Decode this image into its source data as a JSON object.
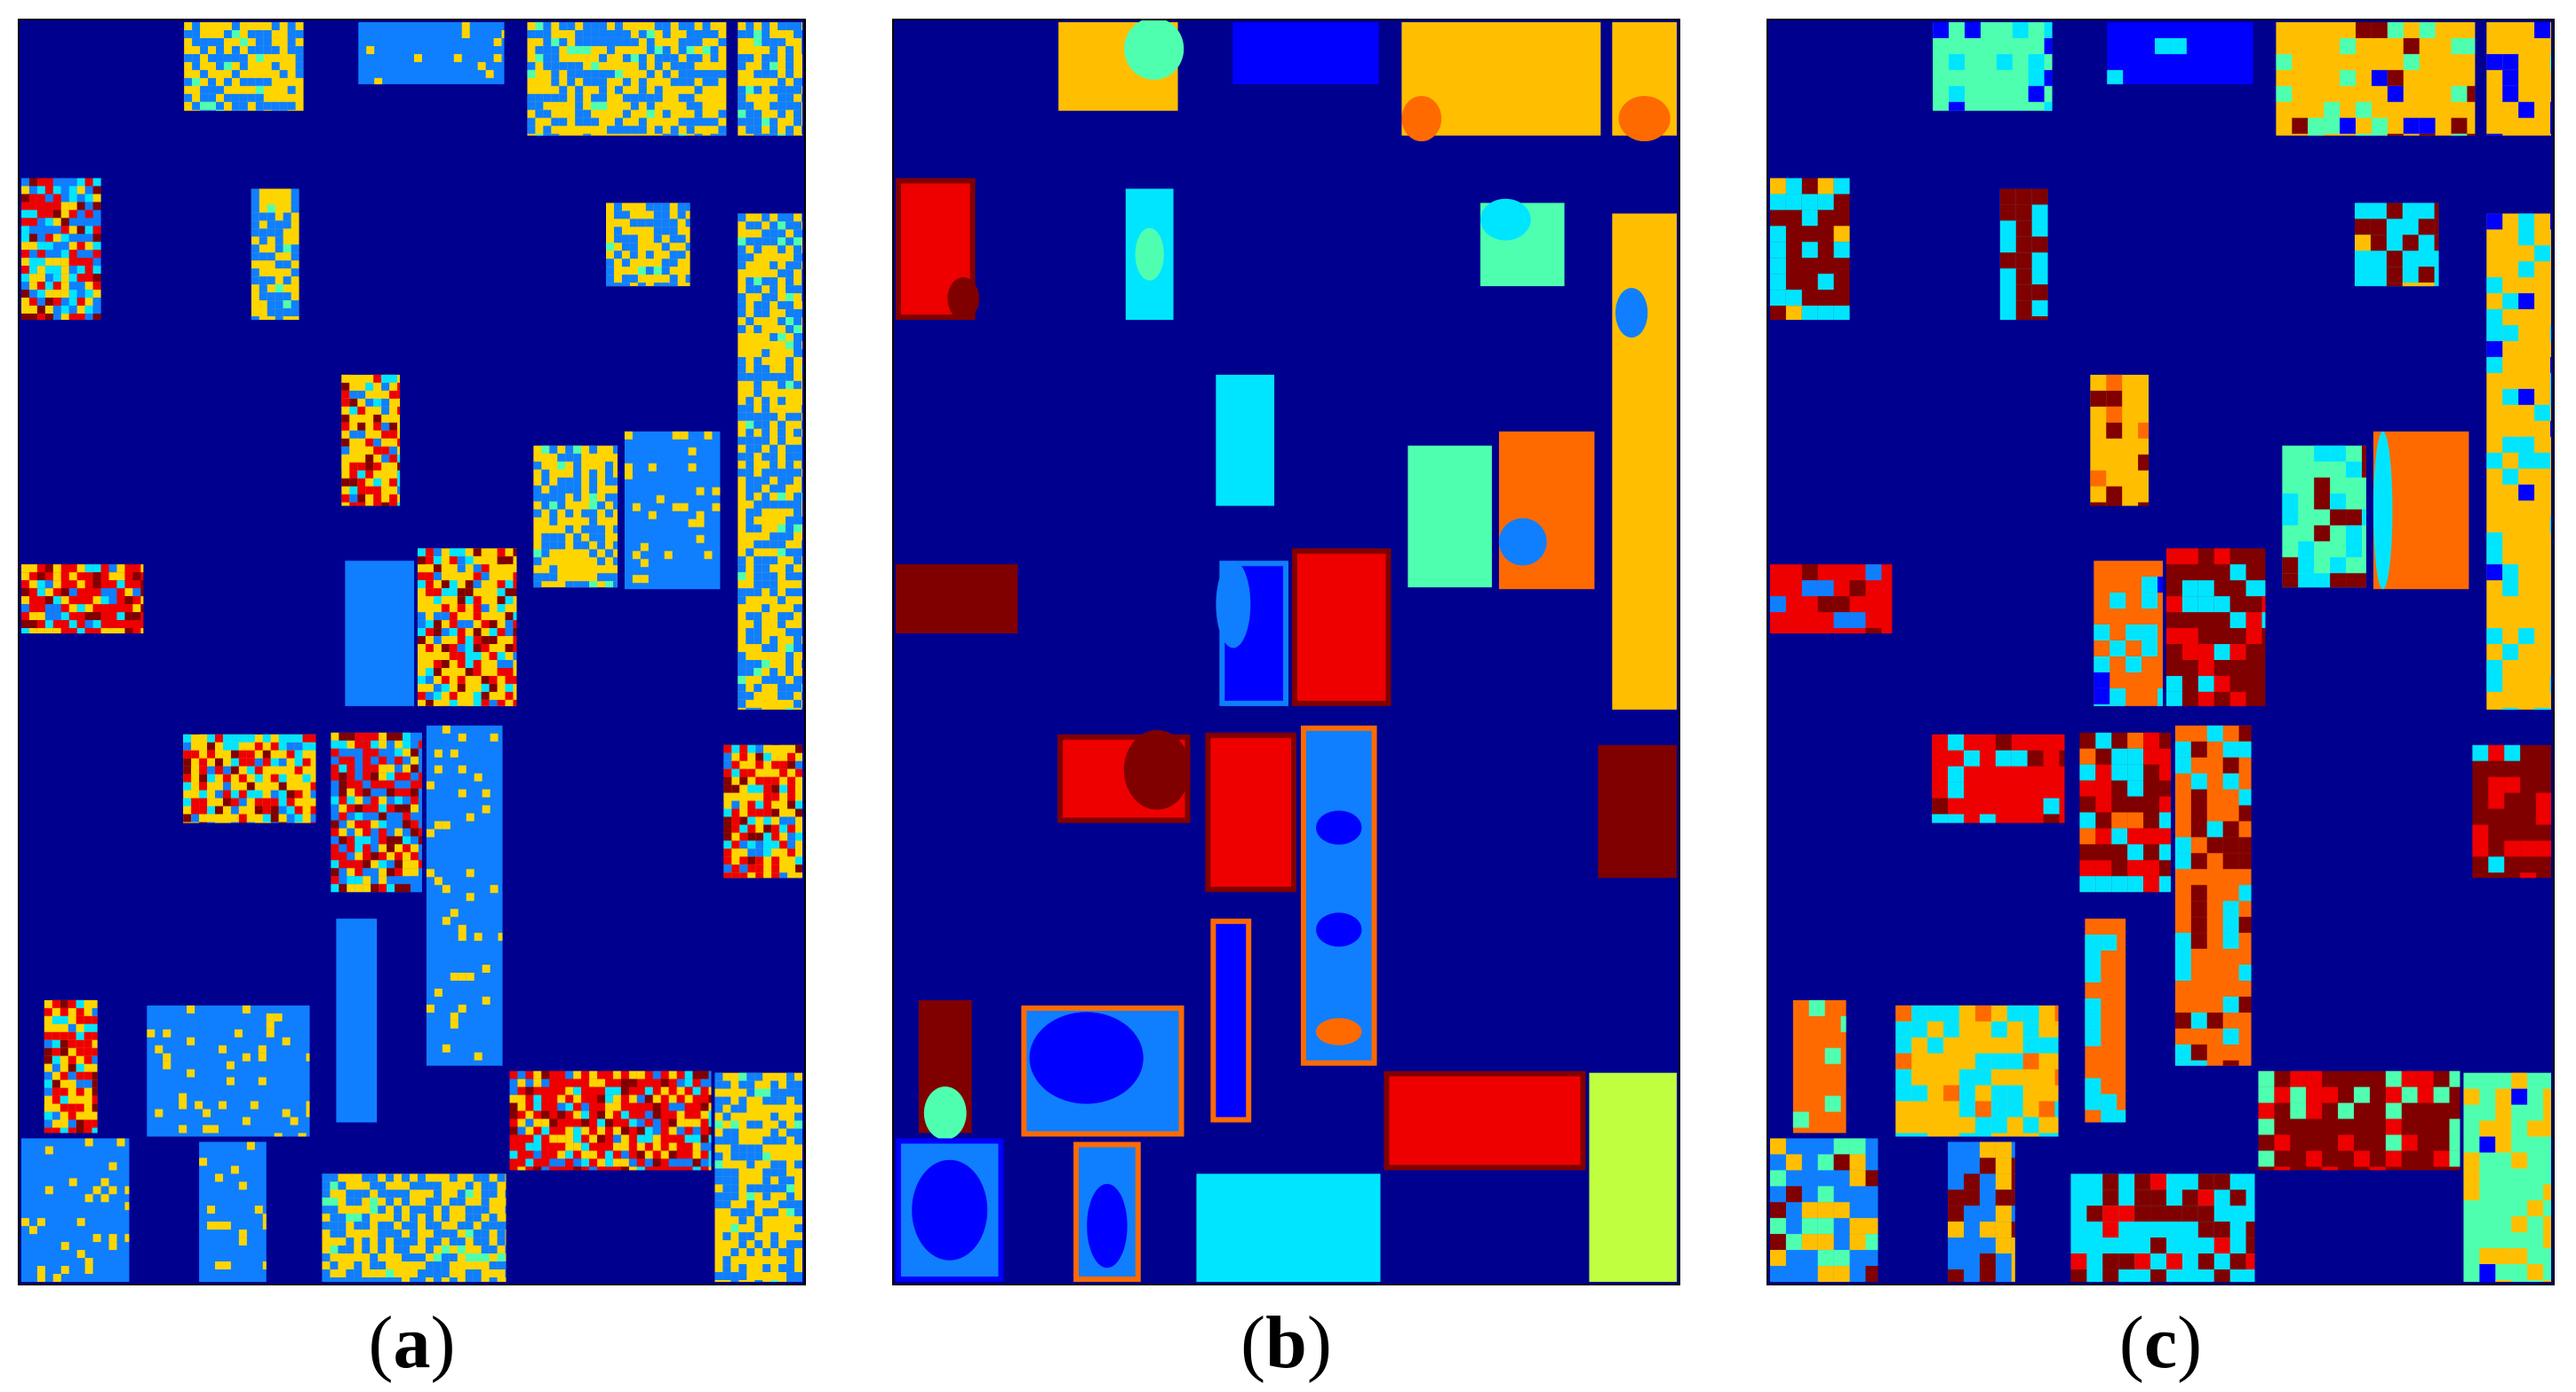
{
  "palette": {
    "background": "#00008f",
    "blue": "#0000ff",
    "medium_blue": "#0f7fff",
    "cyan": "#00e5ff",
    "aquamarine": "#4fffb0",
    "yellow_green": "#bfff3f",
    "yellow": "#ffd500",
    "gold": "#ffbf00",
    "orange": "#ff6a00",
    "red": "#ee0000",
    "dark_red": "#800000"
  },
  "panels": [
    {
      "id": "a",
      "caption_letter": "a"
    },
    {
      "id": "b",
      "caption_letter": "b"
    },
    {
      "id": "c",
      "caption_letter": "c"
    }
  ],
  "caption_paren_open": "(",
  "caption_paren_close": ")"
}
